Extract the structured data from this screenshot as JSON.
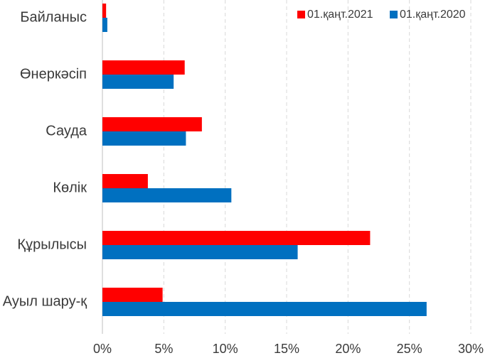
{
  "chart_data": {
    "type": "bar",
    "orientation": "horizontal",
    "categories": [
      "Байланыс",
      "Өнеркәсіп",
      "Сауда",
      "Көлік",
      "Құрылысы",
      "Ауыл шару-қ"
    ],
    "series": [
      {
        "name": "01.қаңт.2021",
        "color": "#ff0000",
        "values": [
          0.3,
          6.7,
          8.1,
          3.7,
          21.8,
          4.9
        ]
      },
      {
        "name": "01.қаңт.2020",
        "color": "#0070c0",
        "values": [
          0.4,
          5.8,
          6.8,
          10.5,
          15.9,
          26.4
        ]
      }
    ],
    "xlim": [
      0,
      30
    ],
    "x_ticks": [
      0,
      5,
      10,
      15,
      20,
      25,
      30
    ],
    "x_tick_labels": [
      "0%",
      "5%",
      "10%",
      "15%",
      "20%",
      "25%",
      "30%"
    ],
    "grid": "vertical-dashed",
    "legend": "top-right"
  }
}
